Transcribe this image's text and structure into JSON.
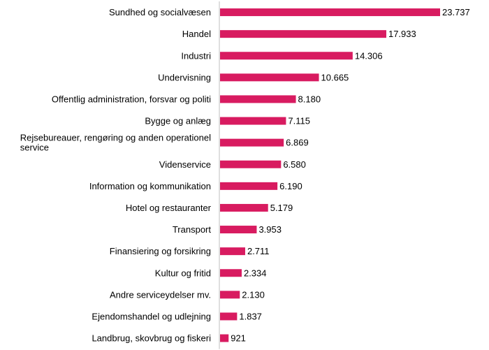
{
  "chart_data": {
    "type": "bar",
    "orientation": "horizontal",
    "title": "",
    "xlabel": "",
    "ylabel": "",
    "grid": false,
    "legend": "none",
    "bar_color": "#d81b60",
    "categories": [
      "Sundhed og socialvæsen",
      "Handel",
      "Industri",
      "Undervisning",
      "Offentlig administration, forsvar og politi",
      "Bygge og anlæg",
      "Rejsebureauer, rengøring og anden operationel service",
      "Videnservice",
      "Information og kommunikation",
      "Hotel og restauranter",
      "Transport",
      "Finansiering og forsikring",
      "Kultur og fritid",
      "Andre serviceydelser  mv.",
      "Ejendomshandel og udlejning",
      "Landbrug, skovbrug og fiskeri"
    ],
    "values": [
      23737,
      17933,
      14306,
      10665,
      8180,
      7115,
      6869,
      6580,
      6190,
      5179,
      3953,
      2711,
      2334,
      2130,
      1837,
      921
    ],
    "value_labels": [
      "23.737",
      "17.933",
      "14.306",
      "10.665",
      "8.180",
      "7.115",
      "6.869",
      "6.580",
      "6.190",
      "5.179",
      "3.953",
      "2.711",
      "2.334",
      "2.130",
      "1.837",
      "921"
    ],
    "xlim": [
      0,
      23737
    ]
  }
}
